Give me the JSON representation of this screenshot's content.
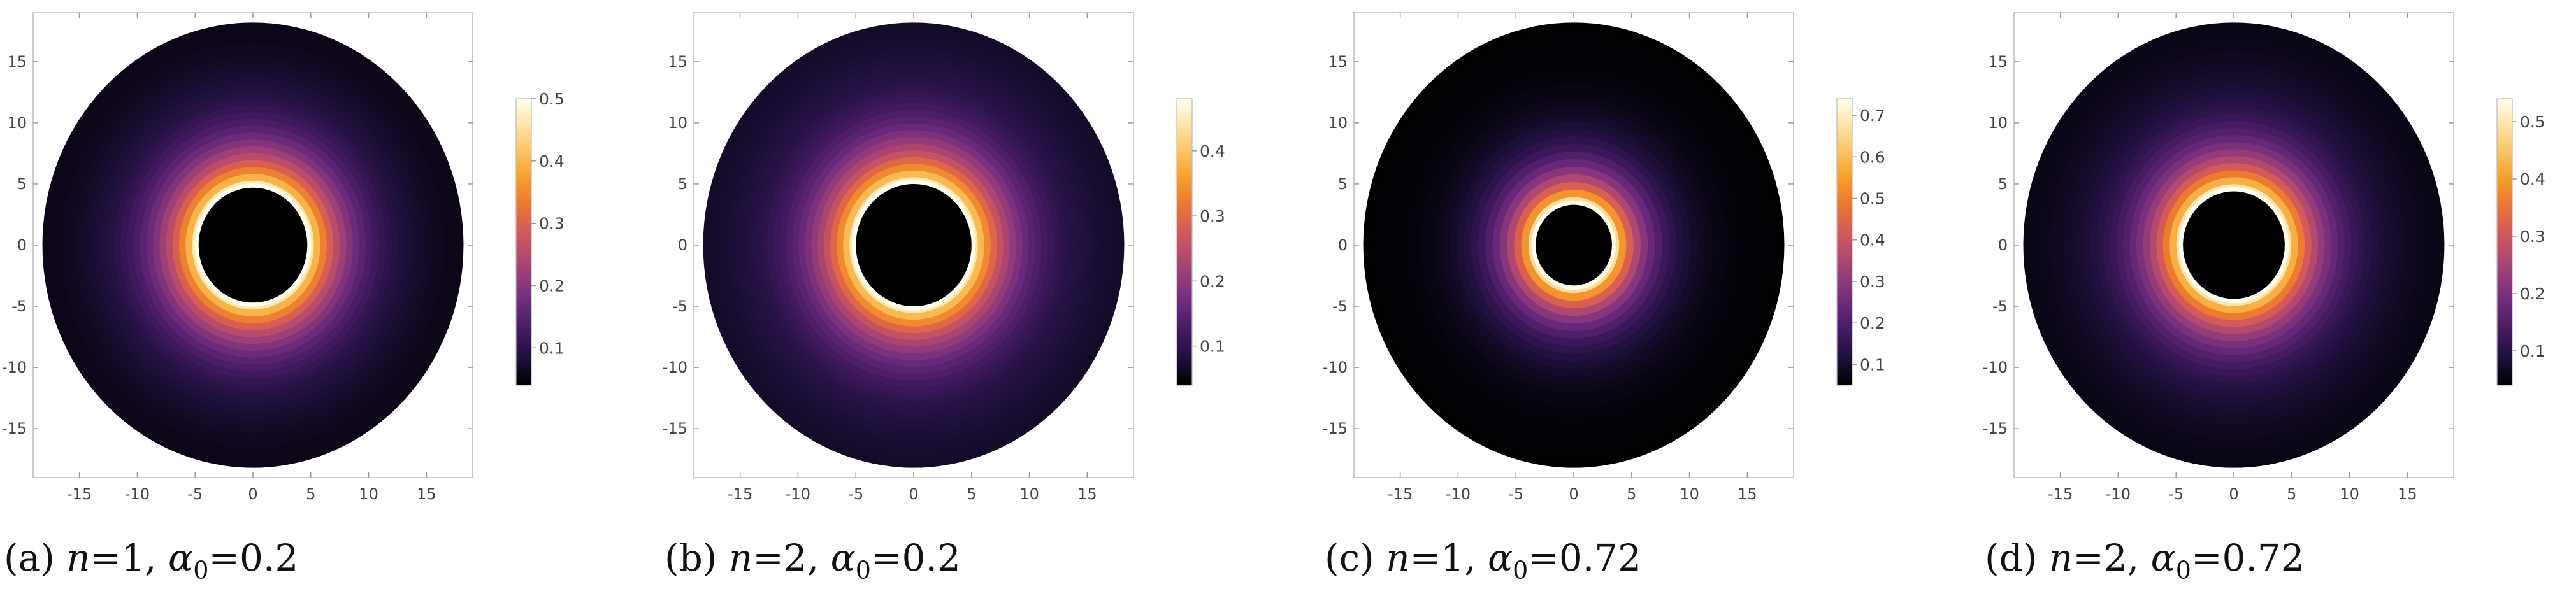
{
  "chart_data": [
    {
      "type": "heatmap",
      "subtype": "circular-density",
      "caption": {
        "label": "(a)",
        "n": "1",
        "alpha": "0.2"
      },
      "xlim": [
        -19,
        19
      ],
      "ylim": [
        -19,
        19
      ],
      "xticks": [
        -15,
        -10,
        -5,
        0,
        5,
        10,
        15
      ],
      "yticks": [
        -15,
        -10,
        -5,
        0,
        5,
        10,
        15
      ],
      "outer_radius": 18.2,
      "inner_radius": 4.7,
      "colorbar": {
        "min": 0.04,
        "max": 0.5,
        "ticks": [
          "0.1",
          "0.2",
          "0.3",
          "0.4",
          "0.5"
        ],
        "tick_values": [
          0.1,
          0.2,
          0.3,
          0.4,
          0.5
        ]
      },
      "radial_profile": {
        "peak_value": 0.5,
        "edge_value": 0.05,
        "decay_rate": 1.0
      }
    },
    {
      "type": "heatmap",
      "subtype": "circular-density",
      "caption": {
        "label": "(b)",
        "n": "2",
        "alpha": "0.2"
      },
      "xlim": [
        -19,
        19
      ],
      "ylim": [
        -19,
        19
      ],
      "xticks": [
        -15,
        -10,
        -5,
        0,
        5,
        10,
        15
      ],
      "yticks": [
        -15,
        -10,
        -5,
        0,
        5,
        10,
        15
      ],
      "outer_radius": 18.2,
      "inner_radius": 5.0,
      "colorbar": {
        "min": 0.04,
        "max": 0.48,
        "ticks": [
          "0.1",
          "0.2",
          "0.3",
          "0.4"
        ],
        "tick_values": [
          0.1,
          0.2,
          0.3,
          0.4
        ]
      },
      "radial_profile": {
        "peak_value": 0.48,
        "edge_value": 0.06,
        "decay_rate": 0.95
      }
    },
    {
      "type": "heatmap",
      "subtype": "circular-density",
      "caption": {
        "label": "(c)",
        "n": "1",
        "alpha": "0.72"
      },
      "xlim": [
        -19,
        19
      ],
      "ylim": [
        -19,
        19
      ],
      "xticks": [
        -15,
        -10,
        -5,
        0,
        5,
        10,
        15
      ],
      "yticks": [
        -15,
        -10,
        -5,
        0,
        5,
        10,
        15
      ],
      "outer_radius": 18.2,
      "inner_radius": 3.3,
      "colorbar": {
        "min": 0.05,
        "max": 0.74,
        "ticks": [
          "0.1",
          "0.2",
          "0.3",
          "0.4",
          "0.5",
          "0.6",
          "0.7"
        ],
        "tick_values": [
          0.1,
          0.2,
          0.3,
          0.4,
          0.5,
          0.6,
          0.7
        ]
      },
      "radial_profile": {
        "peak_value": 0.74,
        "edge_value": 0.05,
        "decay_rate": 1.35
      }
    },
    {
      "type": "heatmap",
      "subtype": "circular-density",
      "caption": {
        "label": "(d)",
        "n": "2",
        "alpha": "0.72"
      },
      "xlim": [
        -19,
        19
      ],
      "ylim": [
        -19,
        19
      ],
      "xticks": [
        -15,
        -10,
        -5,
        0,
        5,
        10,
        15
      ],
      "yticks": [
        -15,
        -10,
        -5,
        0,
        5,
        10,
        15
      ],
      "outer_radius": 18.2,
      "inner_radius": 4.4,
      "colorbar": {
        "min": 0.04,
        "max": 0.54,
        "ticks": [
          "0.1",
          "0.2",
          "0.3",
          "0.4",
          "0.5"
        ],
        "tick_values": [
          0.1,
          0.2,
          0.3,
          0.4,
          0.5
        ]
      },
      "radial_profile": {
        "peak_value": 0.54,
        "edge_value": 0.05,
        "decay_rate": 1.05
      }
    }
  ],
  "colormap": [
    "#000000",
    "#1c0f3a",
    "#41195f",
    "#67287a",
    "#8e3a7c",
    "#b64a6e",
    "#d75c55",
    "#ec7a2e",
    "#f7a02a",
    "#fbc665",
    "#fde4a8",
    "#ffffee"
  ]
}
